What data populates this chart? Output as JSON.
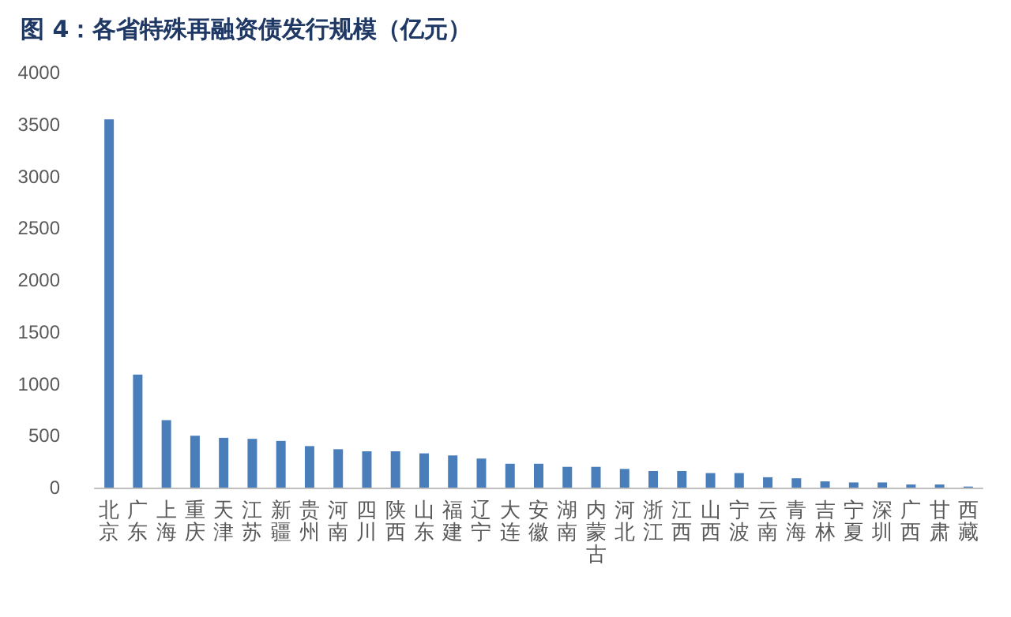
{
  "chart_data": {
    "type": "bar",
    "title": "图 4：各省特殊再融资债发行规模（亿元）",
    "categories": [
      "北京",
      "广东",
      "上海",
      "重庆",
      "天津",
      "江苏",
      "新疆",
      "贵州",
      "河南",
      "四川",
      "陕西",
      "山东",
      "福建",
      "辽宁",
      "大连",
      "安徽",
      "湖南",
      "内蒙古",
      "河北",
      "浙江",
      "江西",
      "山西",
      "宁波",
      "云南",
      "青海",
      "吉林",
      "宁夏",
      "深圳",
      "广西",
      "甘肃",
      "西藏"
    ],
    "values": [
      3550,
      1090,
      650,
      500,
      480,
      470,
      450,
      400,
      370,
      350,
      350,
      330,
      310,
      280,
      230,
      230,
      200,
      200,
      180,
      160,
      160,
      140,
      140,
      100,
      90,
      60,
      50,
      50,
      30,
      30,
      10
    ],
    "color": "#4a7ebb",
    "ylim": [
      0,
      4000
    ],
    "yticks": [
      0,
      500,
      1000,
      1500,
      2000,
      2500,
      3000,
      3500,
      4000
    ],
    "grid": false
  }
}
